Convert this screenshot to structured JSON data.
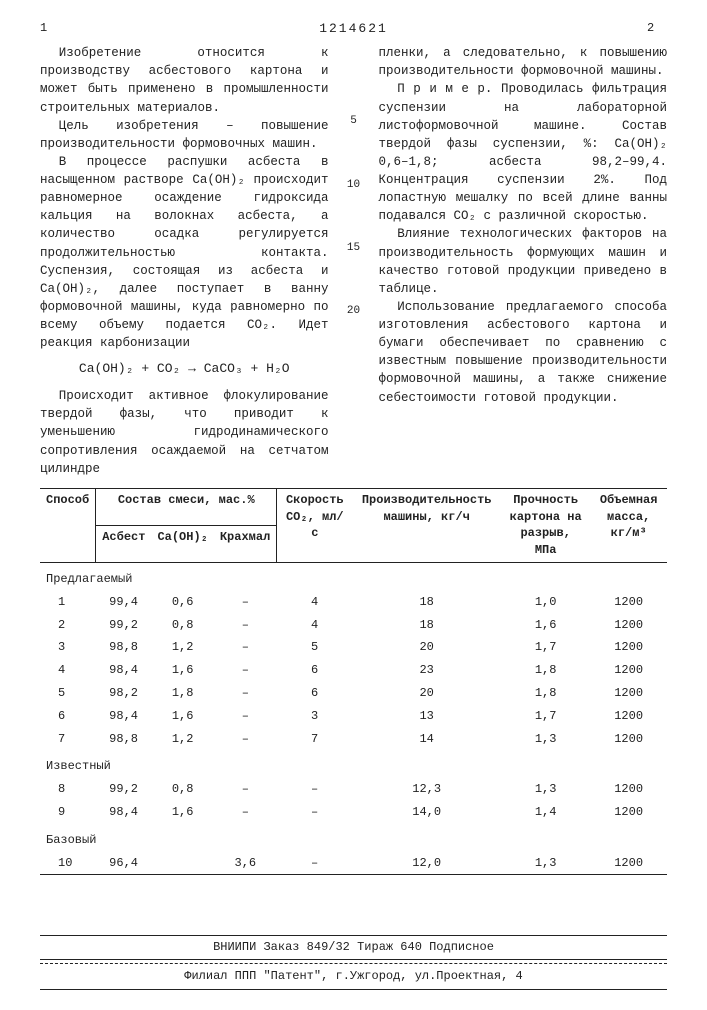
{
  "header": {
    "page_left": "1",
    "doc_number": "1214621",
    "page_right": "2"
  },
  "left_col": {
    "p1": "Изобретение относится к производству асбестового картона и может быть применено в промышленности строительных материалов.",
    "p2": "Цель изобретения – повышение производительности формовочных машин.",
    "p3": "В процессе распушки асбеста в насыщенном растворе Ca(OH)₂ происходит равномерное осаждение гидроксида кальция на волокнах асбеста, а количество осадка регулируется продолжительностью контакта. Суспензия, состоящая из асбеста и Ca(OH)₂, далее поступает в ванну формовочной машины, куда равномерно по всему объему подается CO₂. Идет реакция карбонизации",
    "formula": "Ca(OH)₂ + CO₂ → CaCO₃ + H₂O",
    "p4": "Происходит активное флокулирование твердой фазы, что приводит к уменьшению гидродинамического сопротивления осаждаемой на сетчатом цилиндре"
  },
  "right_col": {
    "p1": "пленки, а следовательно, к повышению производительности формовочной машины.",
    "p2": "П р и м е р. Проводилась фильтрация суспензии на лабораторной листоформовочной машине. Состав твердой фазы суспензии, %: Ca(OH)₂ 0,6–1,8; асбеста 98,2–99,4. Концентрация суспензии 2%. Под лопастную мешалку по всей длине ванны подавался CO₂ с различной скоростью.",
    "p3": "Влияние технологических факторов на производительность формующих машин и качество готовой продукции приведено в таблице.",
    "p4": "Использование предлагаемого способа изготовления асбестового картона и бумаги обеспечивает по сравнению с известным повышение производительности формовочной машины, а также снижение себестоимости готовой продукции."
  },
  "markers": [
    "5",
    "10",
    "15",
    "20"
  ],
  "table": {
    "headers_top": [
      "Способ",
      "Состав смеси, мас.%",
      "Скорость CO₂, мл/с",
      "Производительность машины, кг/ч",
      "Прочность картона на разрыв, МПа",
      "Объемная масса, кг/м³"
    ],
    "headers_sub": [
      "Асбест",
      "Ca(OH)₂",
      "Крахмал"
    ],
    "groups": [
      {
        "label": "Предлагаемый",
        "rows": [
          [
            "1",
            "99,4",
            "0,6",
            "–",
            "4",
            "18",
            "1,0",
            "1200"
          ],
          [
            "2",
            "99,2",
            "0,8",
            "–",
            "4",
            "18",
            "1,6",
            "1200"
          ],
          [
            "3",
            "98,8",
            "1,2",
            "–",
            "5",
            "20",
            "1,7",
            "1200"
          ],
          [
            "4",
            "98,4",
            "1,6",
            "–",
            "6",
            "23",
            "1,8",
            "1200"
          ],
          [
            "5",
            "98,2",
            "1,8",
            "–",
            "6",
            "20",
            "1,8",
            "1200"
          ],
          [
            "6",
            "98,4",
            "1,6",
            "–",
            "3",
            "13",
            "1,7",
            "1200"
          ],
          [
            "7",
            "98,8",
            "1,2",
            "–",
            "7",
            "14",
            "1,3",
            "1200"
          ]
        ]
      },
      {
        "label": "Известный",
        "rows": [
          [
            "8",
            "99,2",
            "0,8",
            "–",
            "–",
            "12,3",
            "1,3",
            "1200"
          ],
          [
            "9",
            "98,4",
            "1,6",
            "–",
            "–",
            "14,0",
            "1,4",
            "1200"
          ]
        ]
      },
      {
        "label": "Базовый",
        "rows": [
          [
            "10",
            "96,4",
            "",
            "3,6",
            "–",
            "12,0",
            "1,3",
            "1200"
          ]
        ]
      }
    ]
  },
  "footer": {
    "line1": "ВНИИПИ  Заказ 849/32  Тираж 640  Подписное",
    "line2": "Филиал ППП \"Патент\", г.Ужгород, ул.Проектная, 4"
  },
  "colors": {
    "text": "#222222",
    "bg": "#ffffff",
    "border": "#222222"
  }
}
